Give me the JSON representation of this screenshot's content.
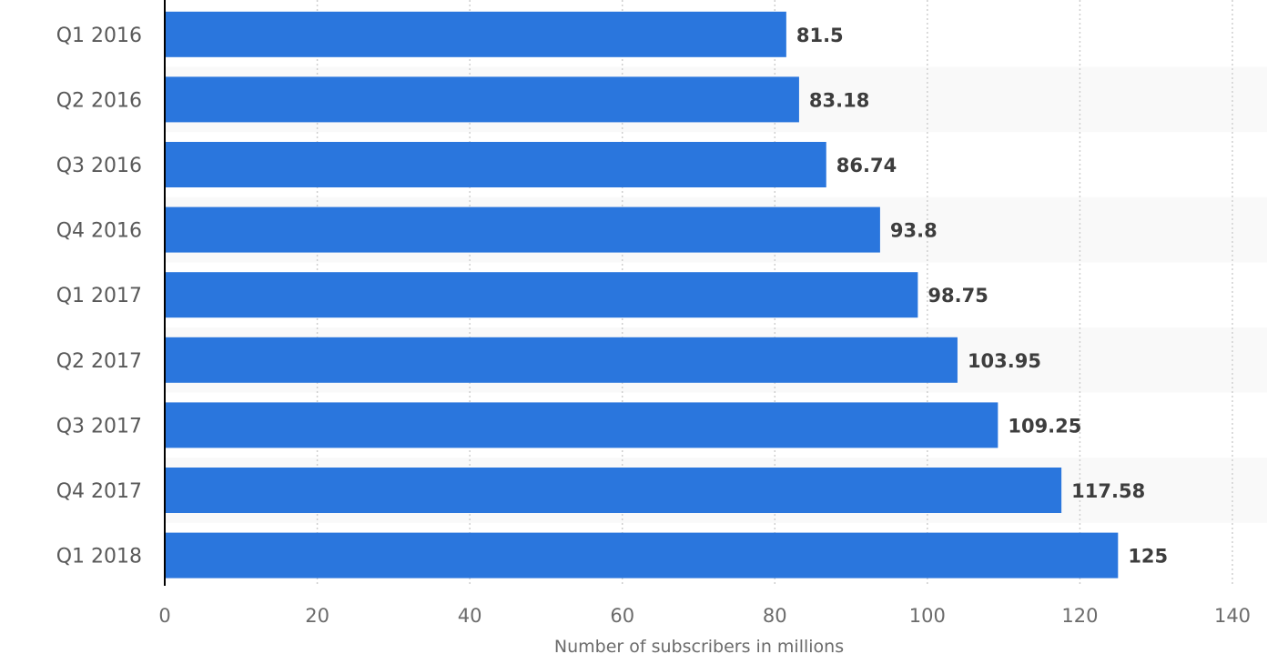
{
  "chart_data": {
    "type": "bar",
    "orientation": "horizontal",
    "categories": [
      "Q1 2016",
      "Q2 2016",
      "Q3 2016",
      "Q4 2016",
      "Q1 2017",
      "Q2 2017",
      "Q3 2017",
      "Q4 2017",
      "Q1 2018"
    ],
    "values": [
      81.5,
      83.18,
      86.74,
      93.8,
      98.75,
      103.95,
      109.25,
      117.58,
      125
    ],
    "value_labels": [
      "81.5",
      "83.18",
      "86.74",
      "93.8",
      "98.75",
      "103.95",
      "109.25",
      "117.58",
      "125"
    ],
    "title": "",
    "xlabel": "Number of subscribers in millions",
    "ylabel": "",
    "xlim": [
      0,
      140
    ],
    "x_ticks": [
      0,
      20,
      40,
      60,
      80,
      100,
      120,
      140
    ],
    "x_tick_labels": [
      "0",
      "20",
      "40",
      "60",
      "80",
      "100",
      "120",
      "140"
    ],
    "grid": "vertical dotted",
    "bar_color": "#2a76dd",
    "alternate_row_color": "#f9f9f9"
  }
}
